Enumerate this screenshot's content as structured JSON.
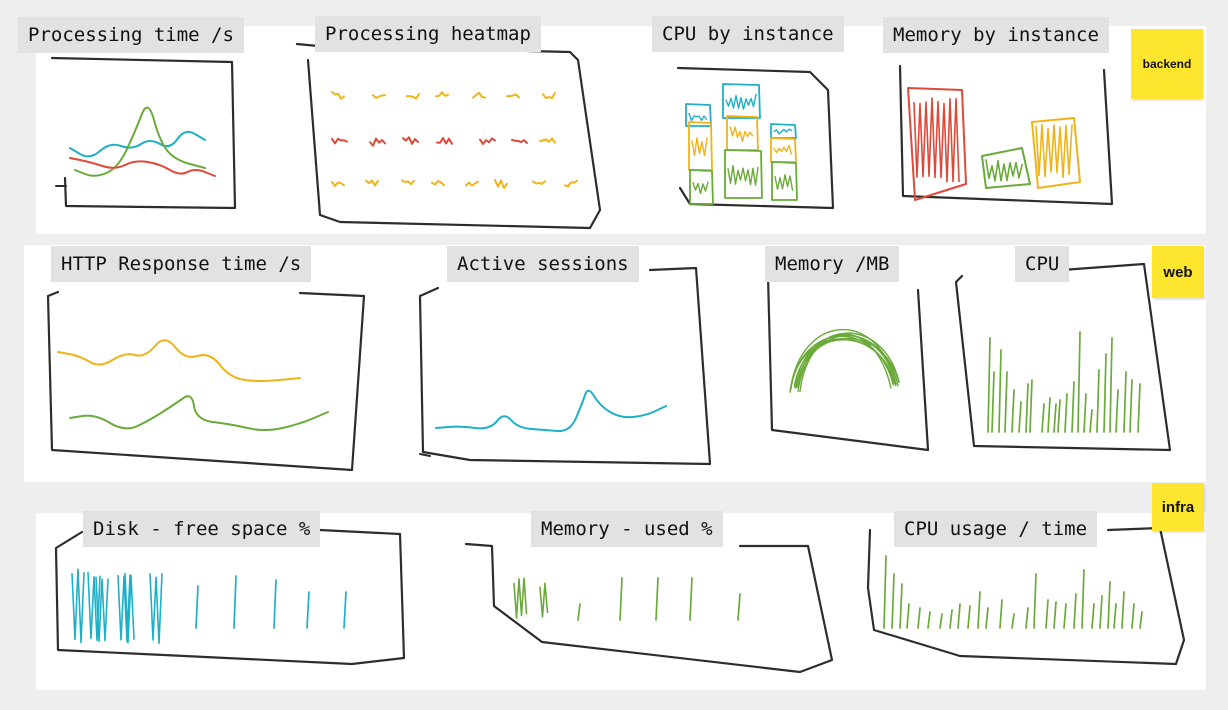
{
  "colors": {
    "ink": "#2d2d2d",
    "teal": "#1fb0c8",
    "green": "#6aaa3a",
    "red": "#dd4a3a",
    "amber": "#f0b318",
    "sticky": "#ffe62e",
    "band": "#ffffff",
    "background": "#eeeeee"
  },
  "sections": [
    {
      "name": "backend",
      "label": "backend",
      "panels": [
        {
          "id": "processing-time",
          "title": "Processing time /s",
          "series": [
            "teal",
            "green",
            "red"
          ],
          "kind": "line"
        },
        {
          "id": "processing-heatmap",
          "title": "Processing heatmap",
          "series": [
            "amber",
            "red"
          ],
          "kind": "heatmap"
        },
        {
          "id": "cpu-by-instance",
          "title": "CPU by instance",
          "series": [
            "teal",
            "amber",
            "green"
          ],
          "kind": "treemap"
        },
        {
          "id": "memory-by-instance",
          "title": "Memory by instance",
          "series": [
            "red",
            "green",
            "amber"
          ],
          "kind": "treemap"
        }
      ]
    },
    {
      "name": "web",
      "label": "web",
      "panels": [
        {
          "id": "http-response-time",
          "title": "HTTP Response time /s",
          "series": [
            "amber",
            "green"
          ],
          "kind": "line"
        },
        {
          "id": "active-sessions",
          "title": "Active sessions",
          "series": [
            "teal"
          ],
          "kind": "line"
        },
        {
          "id": "memory-mb",
          "title": "Memory /MB",
          "series": [
            "green"
          ],
          "kind": "arcs"
        },
        {
          "id": "cpu",
          "title": "CPU",
          "series": [
            "green"
          ],
          "kind": "spikes"
        }
      ]
    },
    {
      "name": "infra",
      "label": "infra",
      "panels": [
        {
          "id": "disk-free-space",
          "title": "Disk - free space %",
          "series": [
            "teal"
          ],
          "kind": "bars"
        },
        {
          "id": "memory-used",
          "title": "Memory - used %",
          "series": [
            "green"
          ],
          "kind": "bars"
        },
        {
          "id": "cpu-usage-time",
          "title": "CPU usage / time",
          "series": [
            "green"
          ],
          "kind": "spikes"
        }
      ]
    }
  ]
}
